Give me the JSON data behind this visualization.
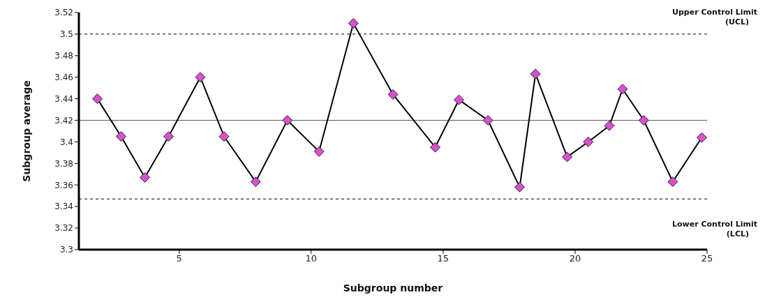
{
  "chart_data": {
    "type": "line",
    "xlabel": "Subgroup number",
    "ylabel": "Subgroup average",
    "x": [
      1.9,
      2.8,
      3.7,
      4.6,
      5.8,
      6.7,
      7.9,
      9.1,
      10.3,
      11.6,
      13.1,
      14.7,
      15.6,
      16.7,
      17.9,
      18.5,
      19.7,
      20.5,
      21.3,
      21.8,
      22.6,
      23.7,
      24.8
    ],
    "series": [
      {
        "color": "#d94fd0",
        "values": [
          3.44,
          3.405,
          3.367,
          3.405,
          3.46,
          3.405,
          3.363,
          3.42,
          3.391,
          3.51,
          3.444,
          3.395,
          3.439,
          3.42,
          3.358,
          3.463,
          3.386,
          3.4,
          3.415,
          3.449,
          3.42,
          3.363,
          3.404
        ]
      }
    ],
    "xlim": [
      1.2,
      25
    ],
    "xticks": [
      5,
      10,
      15,
      20,
      25
    ],
    "ylim": [
      3.3,
      3.52
    ],
    "yticks": [
      3.3,
      3.32,
      3.34,
      3.36,
      3.38,
      3.4,
      3.42,
      3.44,
      3.46,
      3.48,
      3.5,
      3.52
    ],
    "ref_lines": [
      {
        "axis": "y",
        "value": 3.5,
        "label": "Upper Control Limit (UCL)",
        "line_style": "dashed",
        "color": "#000000"
      },
      {
        "axis": "y",
        "value": 3.42,
        "line_style": "solid",
        "color": "#555555"
      },
      {
        "axis": "y",
        "value": 3.347,
        "label": "Lower Control Limit (LCL)",
        "line_style": "dashed",
        "color": "#000000"
      }
    ],
    "marker": "diamond",
    "line_style": "solid"
  }
}
